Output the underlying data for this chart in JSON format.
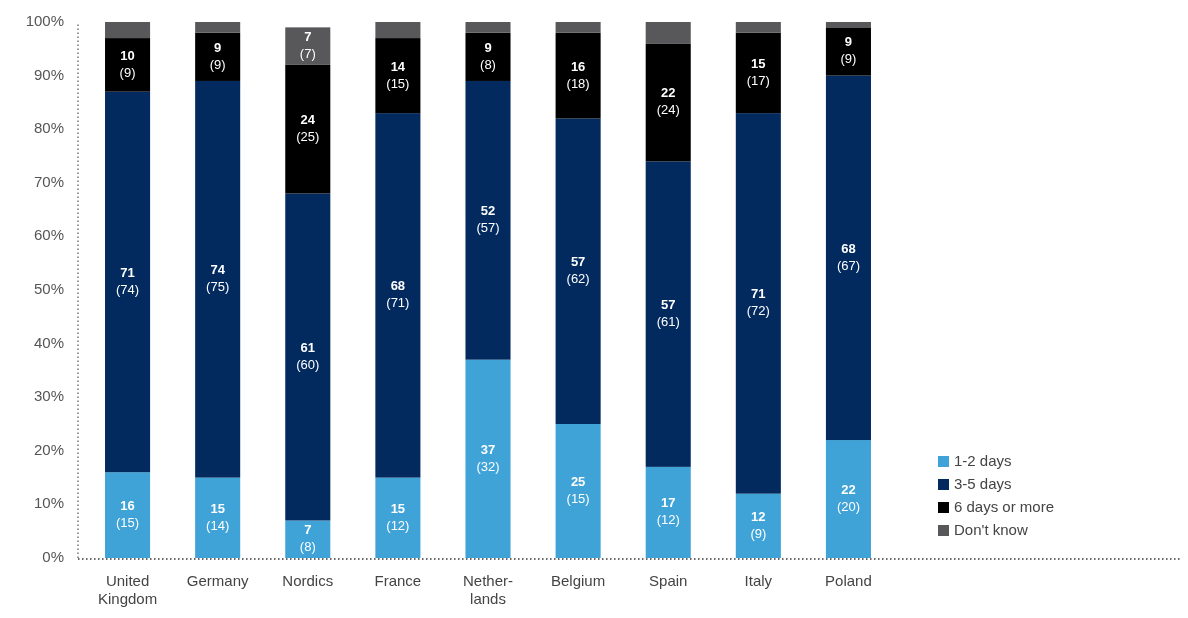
{
  "chart_data": {
    "type": "bar",
    "stacked": true,
    "categories": [
      "United Kingdom",
      "Germany",
      "Nordics",
      "France",
      "Nether-lands",
      "Belgium",
      "Spain",
      "Italy",
      "Poland"
    ],
    "ylim": [
      0,
      100
    ],
    "yticks": [
      {
        "value": 0,
        "label": "0%"
      },
      {
        "value": 10,
        "label": "10%"
      },
      {
        "value": 20,
        "label": "20%"
      },
      {
        "value": 30,
        "label": "30%"
      },
      {
        "value": 40,
        "label": "40%"
      },
      {
        "value": 50,
        "label": "50%"
      },
      {
        "value": 60,
        "label": "60%"
      },
      {
        "value": 70,
        "label": "70%"
      },
      {
        "value": 80,
        "label": "80%"
      },
      {
        "value": 90,
        "label": "90%"
      },
      {
        "value": 100,
        "label": "100%"
      }
    ],
    "grid": false,
    "legend": "bottom right",
    "series": [
      {
        "name": "1-2 days",
        "color": "#3fa3d8",
        "values": [
          16,
          15,
          7,
          15,
          37,
          25,
          17,
          12,
          22
        ],
        "value_labels": [
          "16\n(15)",
          "15\n(14)",
          "7\n(8)",
          "15\n(12)",
          "37\n(32)",
          "25\n(15)",
          "17\n(12)",
          "12\n(9)",
          "22\n(20)"
        ]
      },
      {
        "name": "3-5 days",
        "color": "#032a5e",
        "values": [
          71,
          74,
          61,
          68,
          52,
          57,
          57,
          71,
          68
        ],
        "value_labels": [
          "71\n(74)",
          "74\n(75)",
          "61\n(60)",
          "68\n(71)",
          "52\n(57)",
          "57\n(62)",
          "57\n(61)",
          "71\n(72)",
          "68\n(67)"
        ]
      },
      {
        "name": "6 days or more",
        "color": "#000000",
        "values": [
          10,
          9,
          24,
          14,
          9,
          16,
          22,
          15,
          9
        ],
        "value_labels": [
          "10\n(9)",
          "9\n(9)",
          "24\n(25)",
          "14\n(15)",
          "9\n(8)",
          "16\n(18)",
          "22\n(24)",
          "15\n(17)",
          "9\n(9)"
        ]
      },
      {
        "name": "Don't know",
        "color": "#58585a",
        "values": [
          3,
          2,
          7,
          3,
          2,
          2,
          4,
          2,
          1
        ],
        "value_labels": [
          null,
          null,
          "7\n(7)",
          null,
          null,
          null,
          null,
          null,
          null
        ]
      }
    ]
  }
}
